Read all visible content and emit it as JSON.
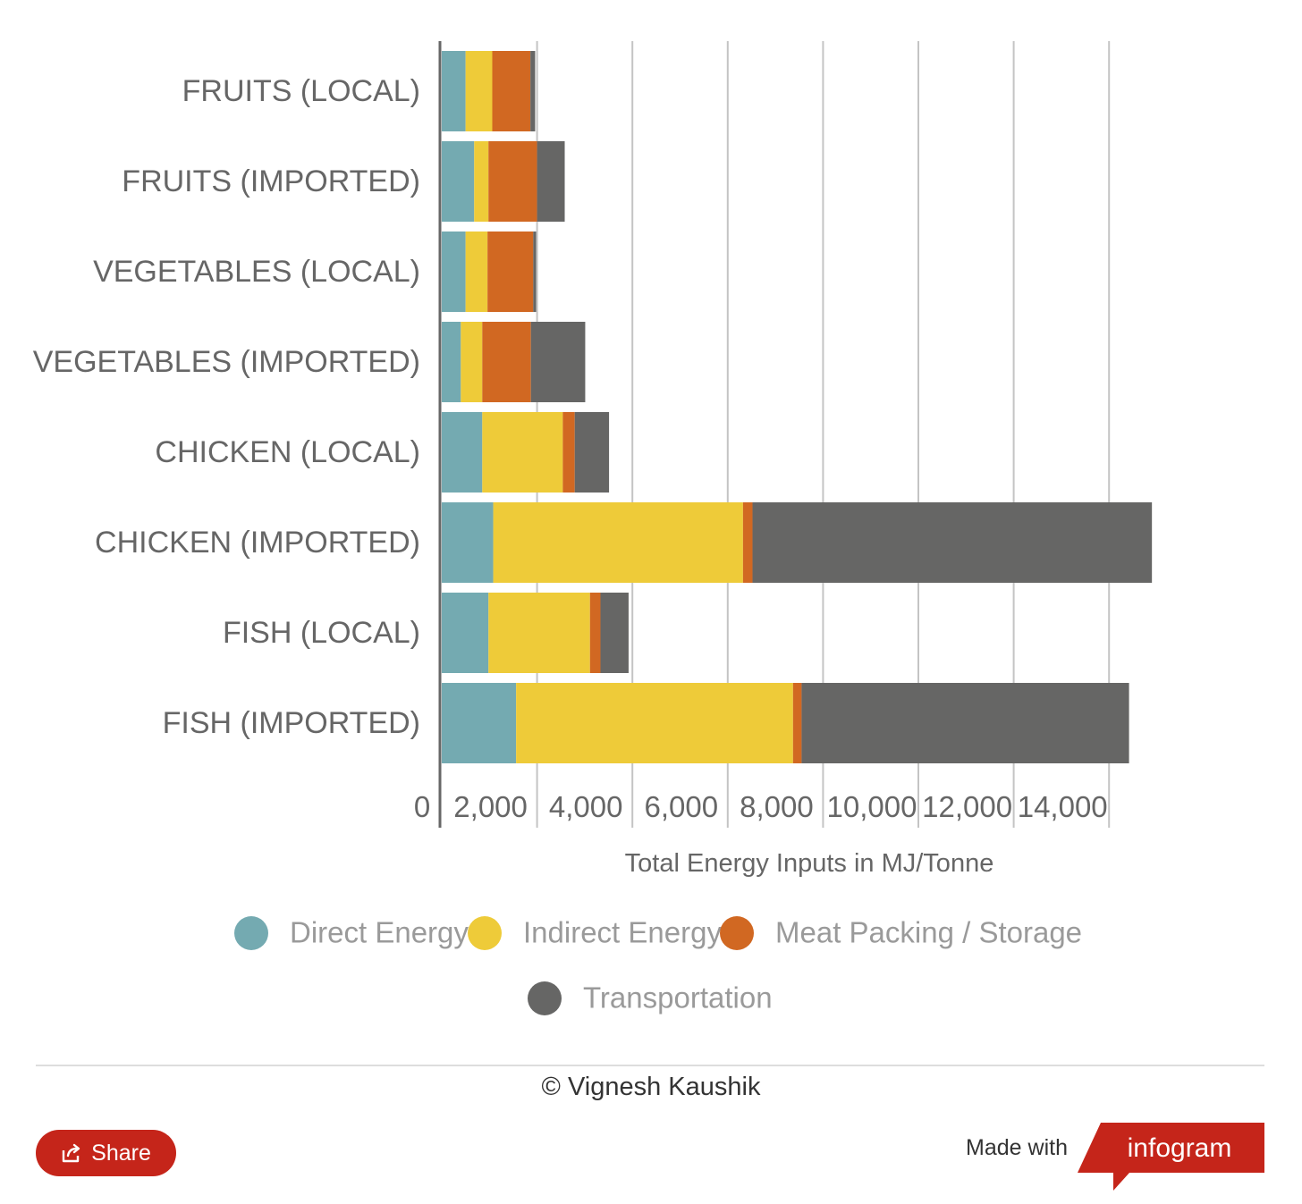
{
  "chart_data": {
    "type": "bar",
    "orientation": "horizontal",
    "stacked": true,
    "categories": [
      "FRUITS (LOCAL)",
      "FRUITS (IMPORTED)",
      "VEGETABLES (LOCAL)",
      "VEGETABLES (IMPORTED)",
      "CHICKEN (LOCAL)",
      "CHICKEN (IMPORTED)",
      "FISH (LOCAL)",
      "FISH (IMPORTED)"
    ],
    "series": [
      {
        "name": "Direct Energy",
        "color": "#74aab1",
        "values": [
          500,
          680,
          500,
          400,
          850,
          1080,
          980,
          1560
        ]
      },
      {
        "name": "Indirect Energy",
        "color": "#eecb39",
        "values": [
          560,
          300,
          460,
          450,
          1690,
          5240,
          2130,
          5810
        ]
      },
      {
        "name": "Meat Packing / Storage",
        "color": "#d16822",
        "values": [
          800,
          1020,
          960,
          1020,
          250,
          200,
          220,
          180
        ]
      },
      {
        "name": "Transportation",
        "color": "#666665",
        "values": [
          100,
          580,
          60,
          1140,
          720,
          8380,
          590,
          6870
        ]
      }
    ],
    "xlabel": "Total Energy Inputs in MJ/Tonne",
    "ylabel": "",
    "xlim": [
      0,
      16000
    ],
    "xticks": [
      0,
      2000,
      4000,
      6000,
      8000,
      10000,
      12000,
      14000
    ],
    "xtick_labels": [
      "0",
      "2,000",
      "4,000",
      "6,000",
      "8,000",
      "10,000",
      "12,000",
      "14,000"
    ],
    "grid": true,
    "legend": "bottom"
  },
  "footer": {
    "credit": "© Vignesh Kaushik",
    "share_label": "Share",
    "made_with": "Made with",
    "brand": "infogram",
    "brand_color": "#c5251a"
  }
}
